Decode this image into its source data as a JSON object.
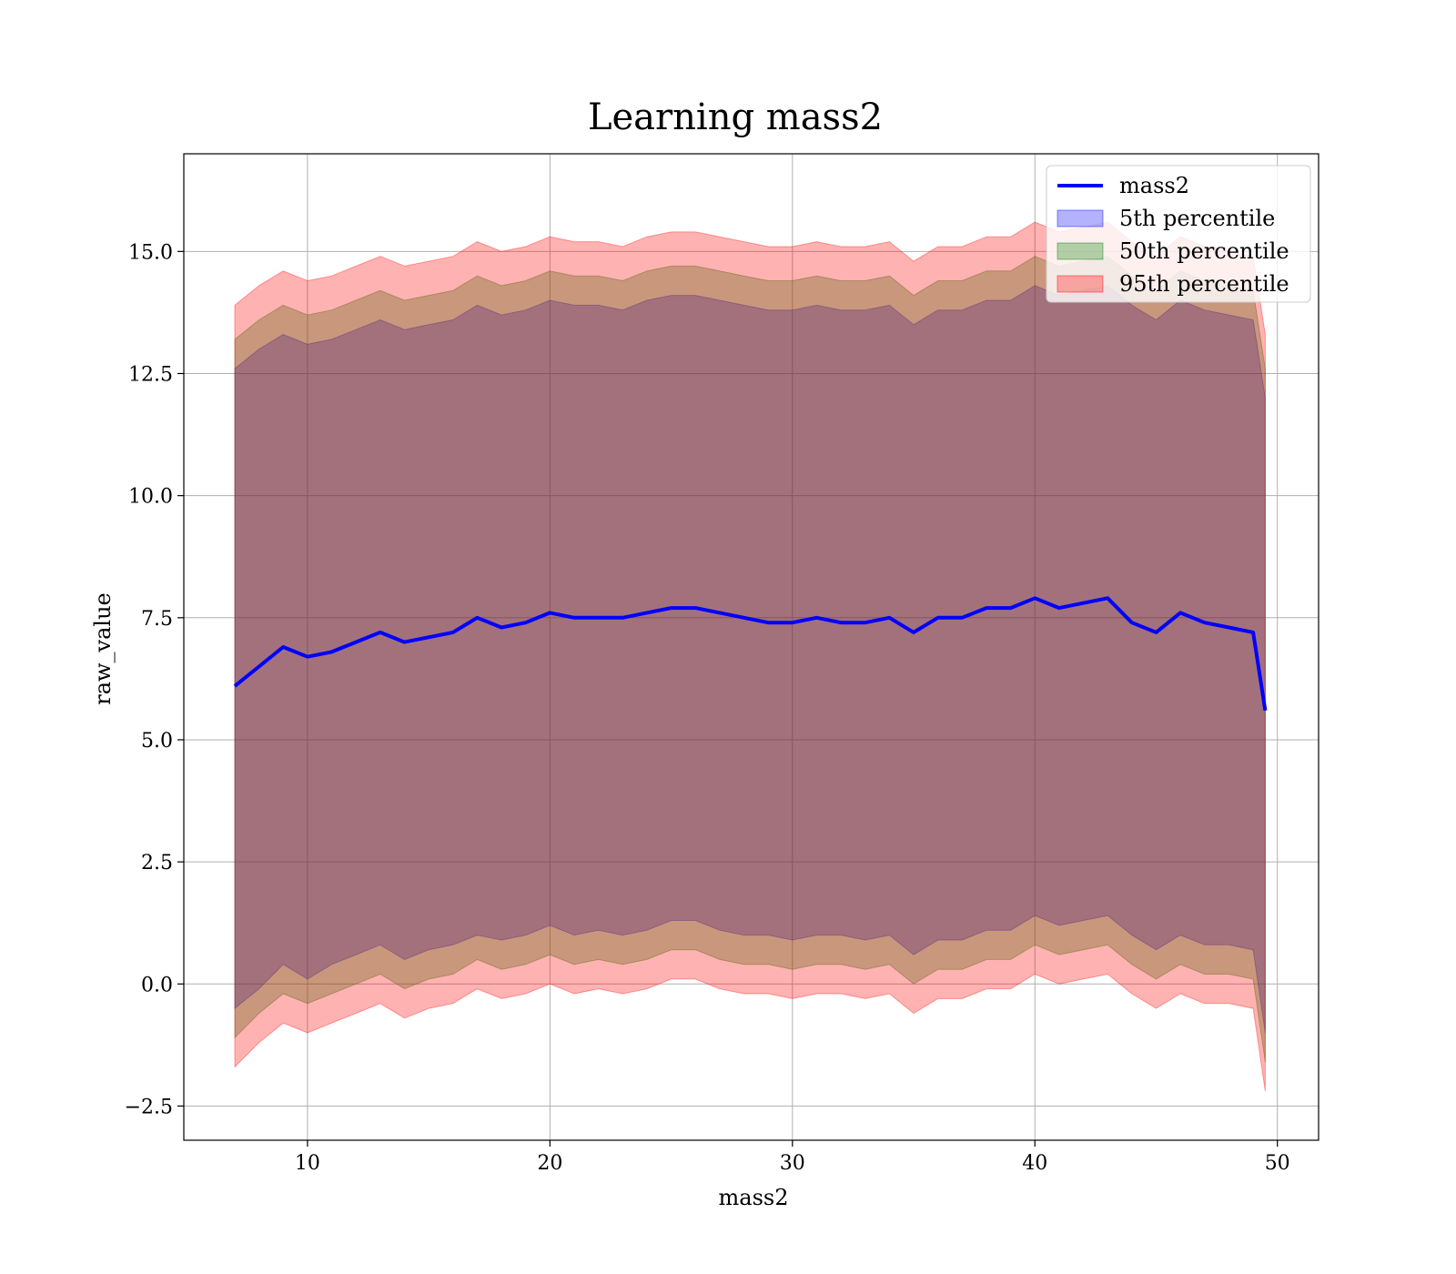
{
  "chart_data": {
    "type": "area",
    "title": "Learning mass2",
    "xlabel": "mass2",
    "ylabel": "raw_value",
    "xlim": [
      4.9,
      51.7
    ],
    "ylim": [
      -3.2,
      17.0
    ],
    "xticks": [
      10,
      20,
      30,
      40,
      50
    ],
    "yticks": [
      -2.5,
      0.0,
      2.5,
      5.0,
      7.5,
      10.0,
      12.5,
      15.0
    ],
    "xtick_labels": [
      "10",
      "20",
      "30",
      "40",
      "50"
    ],
    "ytick_labels": [
      "−2.5",
      "0.0",
      "2.5",
      "5.0",
      "7.5",
      "10.0",
      "12.5",
      "15.0"
    ],
    "grid": true,
    "legend_position": "top-right",
    "legend": [
      "mass2",
      "5th percentile",
      "50th percentile",
      "95th percentile"
    ],
    "x": [
      7,
      8,
      9,
      10,
      11,
      12,
      13,
      14,
      15,
      16,
      17,
      18,
      19,
      20,
      21,
      22,
      23,
      24,
      25,
      26,
      27,
      28,
      29,
      30,
      31,
      32,
      33,
      34,
      35,
      36,
      37,
      38,
      39,
      40,
      41,
      42,
      43,
      44,
      45,
      46,
      47,
      48,
      49,
      49.5
    ],
    "series": [
      {
        "name": "mass2",
        "kind": "line",
        "color": "#0000ff",
        "values": [
          6.1,
          6.5,
          6.9,
          6.7,
          6.8,
          7.0,
          7.2,
          7.0,
          7.1,
          7.2,
          7.5,
          7.3,
          7.4,
          7.6,
          7.5,
          7.5,
          7.5,
          7.6,
          7.7,
          7.7,
          7.6,
          7.5,
          7.4,
          7.4,
          7.5,
          7.4,
          7.4,
          7.5,
          7.2,
          7.5,
          7.5,
          7.7,
          7.7,
          7.9,
          7.7,
          7.8,
          7.9,
          7.4,
          7.2,
          7.6,
          7.4,
          7.3,
          7.2,
          5.6
        ]
      },
      {
        "name": "5th percentile",
        "kind": "band",
        "color": "#0000ff",
        "lower": [
          -0.5,
          -0.1,
          0.4,
          0.1,
          0.4,
          0.6,
          0.8,
          0.5,
          0.7,
          0.8,
          1.0,
          0.9,
          1.0,
          1.2,
          1.0,
          1.1,
          1.0,
          1.1,
          1.3,
          1.3,
          1.1,
          1.0,
          1.0,
          0.9,
          1.0,
          1.0,
          0.9,
          1.0,
          0.6,
          0.9,
          0.9,
          1.1,
          1.1,
          1.4,
          1.2,
          1.3,
          1.4,
          1.0,
          0.7,
          1.0,
          0.8,
          0.8,
          0.7,
          -1.0
        ],
        "upper": [
          12.6,
          13.0,
          13.3,
          13.1,
          13.2,
          13.4,
          13.6,
          13.4,
          13.5,
          13.6,
          13.9,
          13.7,
          13.8,
          14.0,
          13.9,
          13.9,
          13.8,
          14.0,
          14.1,
          14.1,
          14.0,
          13.9,
          13.8,
          13.8,
          13.9,
          13.8,
          13.8,
          13.9,
          13.5,
          13.8,
          13.8,
          14.0,
          14.0,
          14.3,
          14.1,
          14.2,
          14.3,
          13.9,
          13.6,
          14.0,
          13.8,
          13.7,
          13.6,
          12.0
        ]
      },
      {
        "name": "50th percentile",
        "kind": "band",
        "color": "#008000",
        "lower": [
          -1.1,
          -0.6,
          -0.2,
          -0.4,
          -0.2,
          0.0,
          0.2,
          -0.1,
          0.1,
          0.2,
          0.5,
          0.3,
          0.4,
          0.6,
          0.4,
          0.5,
          0.4,
          0.5,
          0.7,
          0.7,
          0.5,
          0.4,
          0.4,
          0.3,
          0.4,
          0.4,
          0.3,
          0.4,
          0.0,
          0.3,
          0.3,
          0.5,
          0.5,
          0.8,
          0.6,
          0.7,
          0.8,
          0.4,
          0.1,
          0.4,
          0.2,
          0.2,
          0.1,
          -1.6
        ],
        "upper": [
          13.2,
          13.6,
          13.9,
          13.7,
          13.8,
          14.0,
          14.2,
          14.0,
          14.1,
          14.2,
          14.5,
          14.3,
          14.4,
          14.6,
          14.5,
          14.5,
          14.4,
          14.6,
          14.7,
          14.7,
          14.6,
          14.5,
          14.4,
          14.4,
          14.5,
          14.4,
          14.4,
          14.5,
          14.1,
          14.4,
          14.4,
          14.6,
          14.6,
          14.9,
          14.7,
          14.8,
          14.9,
          14.5,
          14.2,
          14.6,
          14.4,
          14.3,
          14.2,
          12.6
        ]
      },
      {
        "name": "95th percentile",
        "kind": "band",
        "color": "#ff0000",
        "lower": [
          -1.7,
          -1.2,
          -0.8,
          -1.0,
          -0.8,
          -0.6,
          -0.4,
          -0.7,
          -0.5,
          -0.4,
          -0.1,
          -0.3,
          -0.2,
          0.0,
          -0.2,
          -0.1,
          -0.2,
          -0.1,
          0.1,
          0.1,
          -0.1,
          -0.2,
          -0.2,
          -0.3,
          -0.2,
          -0.2,
          -0.3,
          -0.2,
          -0.6,
          -0.3,
          -0.3,
          -0.1,
          -0.1,
          0.2,
          0.0,
          0.1,
          0.2,
          -0.2,
          -0.5,
          -0.2,
          -0.4,
          -0.4,
          -0.5,
          -2.2
        ],
        "upper": [
          13.9,
          14.3,
          14.6,
          14.4,
          14.5,
          14.7,
          14.9,
          14.7,
          14.8,
          14.9,
          15.2,
          15.0,
          15.1,
          15.3,
          15.2,
          15.2,
          15.1,
          15.3,
          15.4,
          15.4,
          15.3,
          15.2,
          15.1,
          15.1,
          15.2,
          15.1,
          15.1,
          15.2,
          14.8,
          15.1,
          15.1,
          15.3,
          15.3,
          15.6,
          15.4,
          15.5,
          15.6,
          15.2,
          14.9,
          15.3,
          15.1,
          15.0,
          14.9,
          13.3
        ]
      }
    ]
  }
}
